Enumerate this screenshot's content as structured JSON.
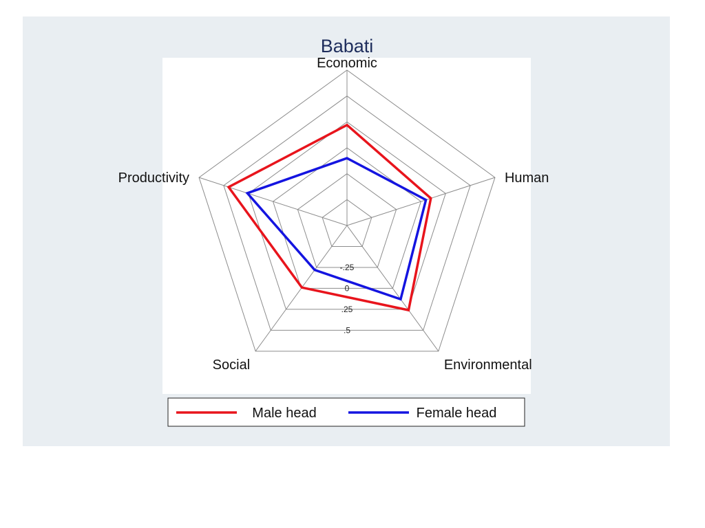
{
  "chart_data": {
    "type": "radar",
    "title": "Babati",
    "axes": [
      "Economic",
      "Human",
      "Environmental",
      "Social",
      "Productivity"
    ],
    "rlim": [
      -0.75,
      0.75
    ],
    "rings": [
      -0.75,
      -0.5,
      -0.25,
      0,
      0.25,
      0.5,
      0.75
    ],
    "tick_labels": [
      {
        "value": -0.25,
        "text": "-.25"
      },
      {
        "value": 0,
        "text": "0"
      },
      {
        "value": 0.25,
        "text": ".25"
      },
      {
        "value": 0.5,
        "text": ".5"
      }
    ],
    "series": [
      {
        "name": "Male head",
        "color": "#e8141c",
        "values": [
          0.22,
          0.1,
          0.26,
          -0.01,
          0.45
        ]
      },
      {
        "name": "Female head",
        "color": "#1414e0",
        "values": [
          -0.1,
          0.05,
          0.13,
          -0.22,
          0.26
        ]
      }
    ],
    "legend_position": "bottom",
    "colors": {
      "plot_region": "#e9eef2",
      "panel": "#ffffff",
      "grid": "#8c8c8c"
    }
  }
}
